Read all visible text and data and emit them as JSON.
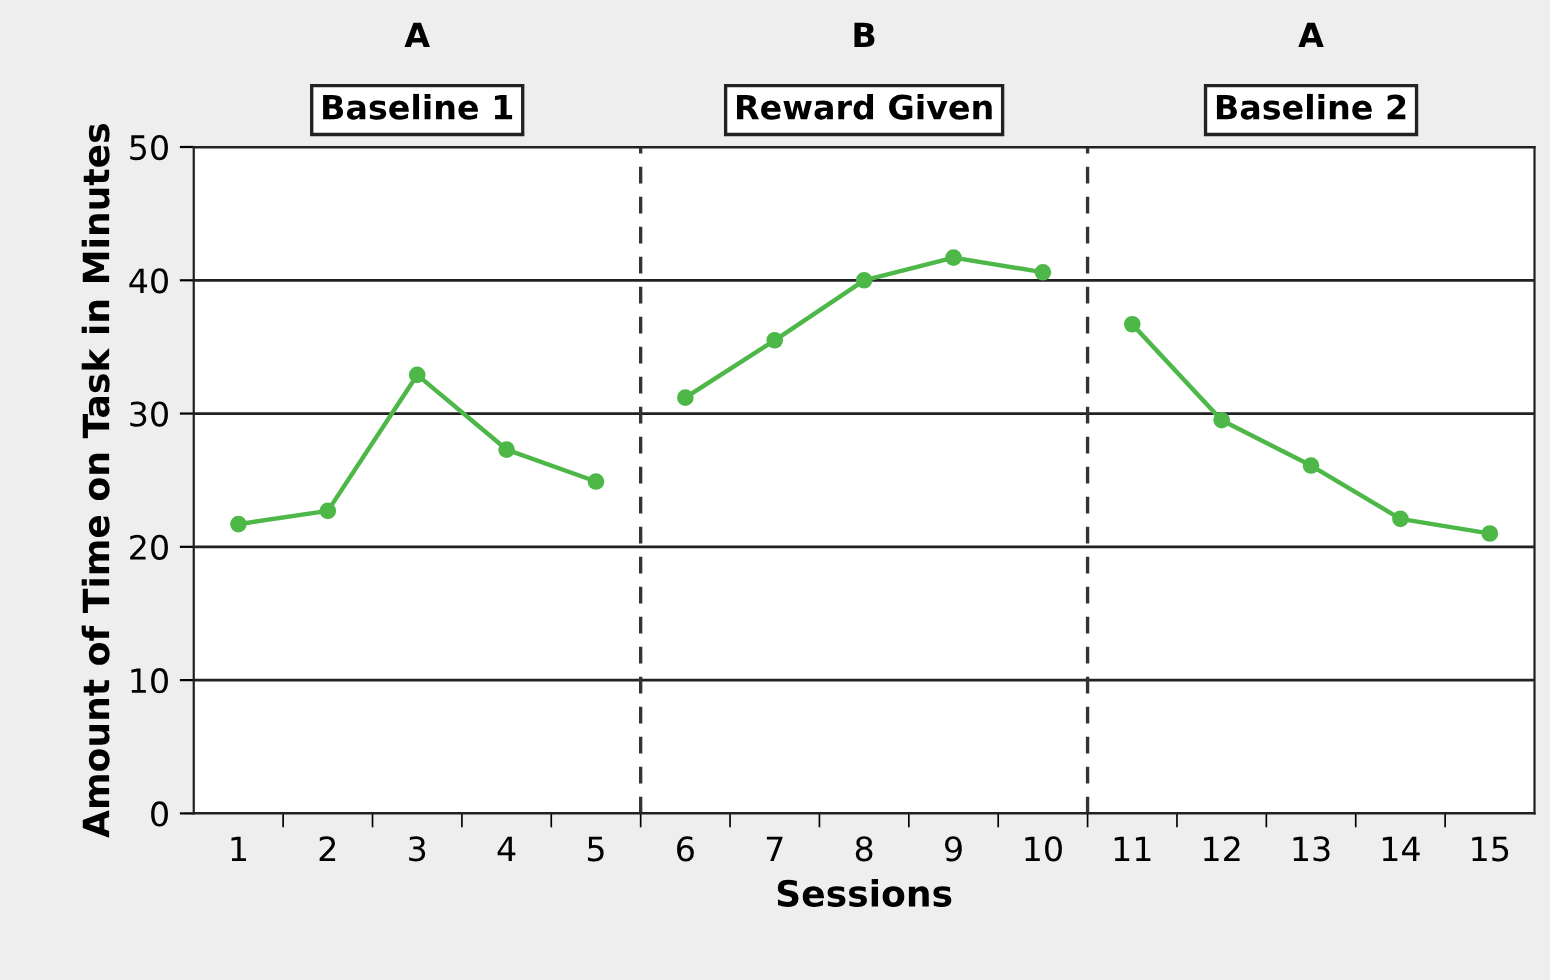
{
  "chart_data": {
    "type": "line",
    "xlabel": "Sessions",
    "ylabel": "Amount of Time on Task in Minutes",
    "series": [
      {
        "color": "#4db848",
        "x": [
          1,
          2,
          3,
          4,
          5
        ],
        "values": [
          21.7,
          22.7,
          32.9,
          27.3,
          24.9
        ]
      },
      {
        "color": "#4db848",
        "x": [
          6,
          7,
          8,
          9,
          10
        ],
        "values": [
          31.2,
          35.5,
          40.0,
          41.7,
          40.6
        ]
      },
      {
        "color": "#4db848",
        "x": [
          11,
          12,
          13,
          14,
          15
        ],
        "values": [
          36.7,
          29.5,
          26.1,
          22.1,
          21.0
        ]
      }
    ],
    "xlim": [
      0.5,
      15.5
    ],
    "xticks": [
      1,
      2,
      3,
      4,
      5,
      6,
      7,
      8,
      9,
      10,
      11,
      12,
      13,
      14,
      15,
      {
        "value": 1.5,
        "label": null
      },
      {
        "value": 2.5,
        "label": null
      },
      {
        "value": 3.5,
        "label": null
      },
      {
        "value": 4.5,
        "label": null
      },
      {
        "value": 5.5,
        "label": null
      },
      {
        "value": 6.5,
        "label": null
      },
      {
        "value": 7.5,
        "label": null
      },
      {
        "value": 8.5,
        "label": null
      },
      {
        "value": 9.5,
        "label": null
      },
      {
        "value": 10.5,
        "label": null
      },
      {
        "value": 11.5,
        "label": null
      },
      {
        "value": 12.5,
        "label": null
      },
      {
        "value": 13.5,
        "label": null
      },
      {
        "value": 14.5,
        "label": null
      }
    ],
    "ylim": [
      0,
      50
    ],
    "yticks": [
      0,
      10,
      20,
      30,
      40,
      50
    ],
    "grid": "y",
    "marker": "circle",
    "line_style": "solid",
    "ref_lines": [
      {
        "axis": "x",
        "value": 5.5,
        "color": "#333333",
        "line_style": "dashed"
      },
      {
        "axis": "x",
        "value": 10.5,
        "color": "#333333",
        "line_style": "dashed"
      }
    ],
    "annotations": [
      "A",
      "Baseline 1",
      "B",
      "Reward Given",
      "A",
      "Baseline 2"
    ]
  }
}
